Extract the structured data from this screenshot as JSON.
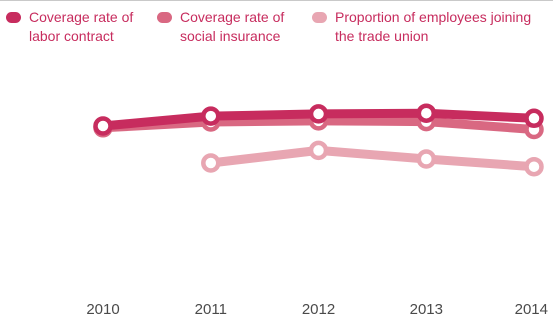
{
  "chart_data": {
    "type": "line",
    "title": "",
    "xlabel": "",
    "ylabel": "",
    "categories": [
      "2010",
      "2011",
      "2012",
      "2013",
      "2014"
    ],
    "ylim": [
      0,
      100
    ],
    "grid": false,
    "legend_position": "top",
    "series": [
      {
        "name": "Coverage rate of labor contract",
        "color": "#c72c5e",
        "values": [
          70.0,
          74.5,
          75.5,
          75.8,
          73.5
        ]
      },
      {
        "name": "Coverage rate of social insurance",
        "color": "#d96882",
        "values": [
          69.2,
          71.8,
          72.3,
          72.0,
          68.4
        ]
      },
      {
        "name": "Proportion of employees joining the trade union",
        "color": "#e8a6b2",
        "values": [
          null,
          53.2,
          58.9,
          55.0,
          51.5
        ]
      }
    ]
  }
}
